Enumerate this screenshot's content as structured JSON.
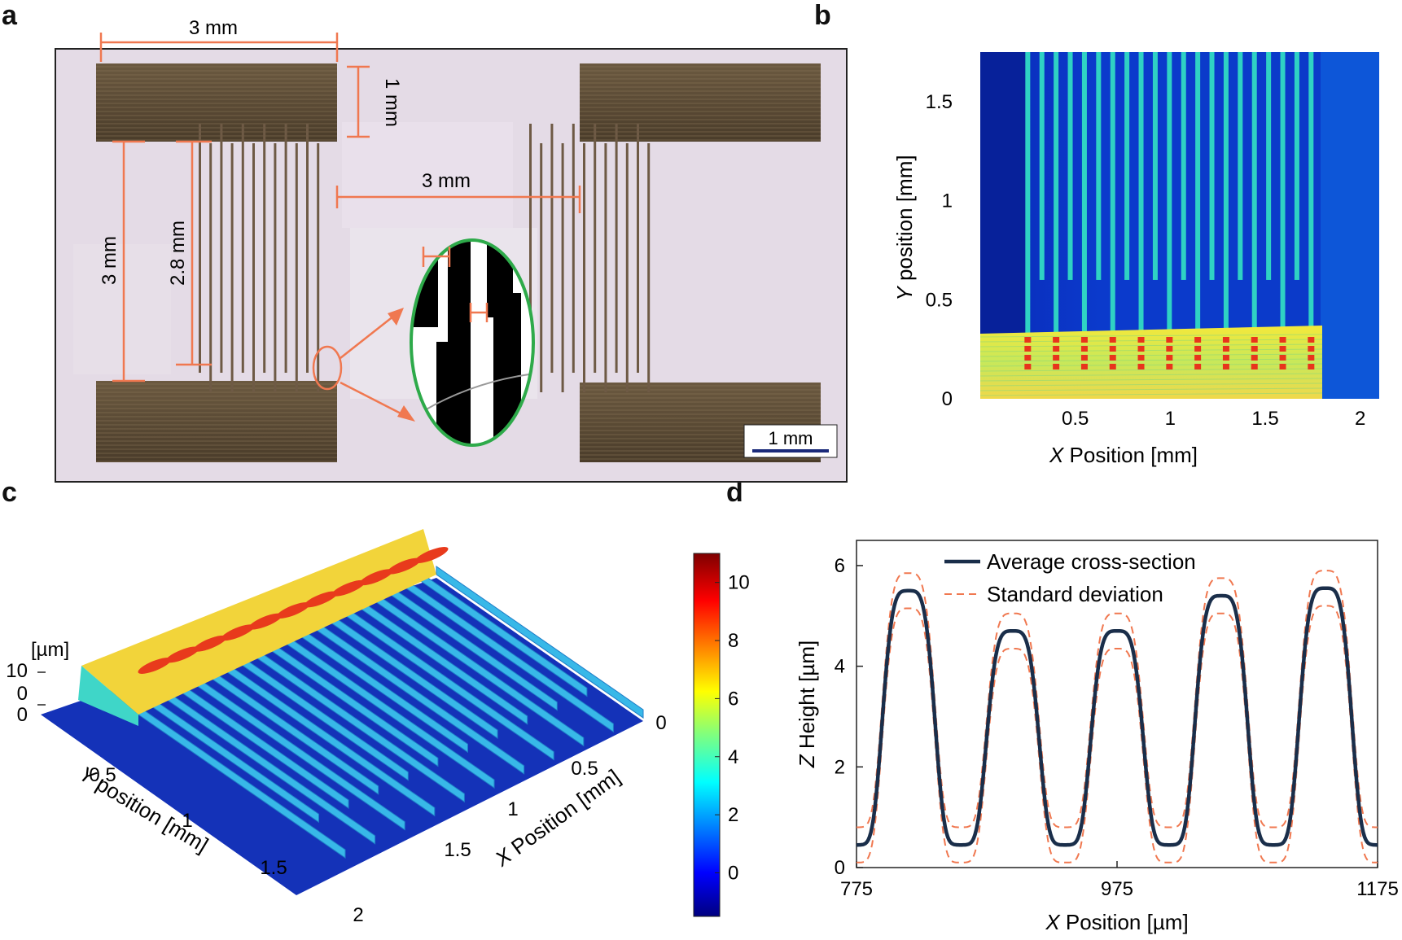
{
  "panels": {
    "a": {
      "letter": "a",
      "dims": {
        "top_width": "3 mm",
        "pad_height": "1 mm",
        "gap": "3 mm",
        "span_outer": "3 mm",
        "span_inner": "2.8 mm"
      },
      "scale_bar": "1 mm",
      "colors": {
        "annotation": "#f07850",
        "inset_border": "#2eaa4a",
        "pad": "#5a4a36",
        "background": "#e4dbe6"
      }
    },
    "b": {
      "letter": "b",
      "xlabel_var": "X",
      "xlabel_rest": " Position [mm]",
      "ylabel_var": "Y",
      "ylabel_rest": " position [mm]",
      "xticks": [
        "0.5",
        "1",
        "1.5",
        "2"
      ],
      "yticks": [
        "0",
        "0.5",
        "1",
        "1.5"
      ]
    },
    "c": {
      "letter": "c",
      "zunit": "[µm]",
      "zticks": [
        "10",
        "0",
        "0"
      ],
      "yticks": [
        "0.5",
        "1",
        "1.5",
        "2"
      ],
      "xticks": [
        "0",
        "0.5",
        "1",
        "1.5"
      ],
      "ylabel_var": "Y",
      "ylabel_rest": " position [mm]",
      "xlabel_var": "X",
      "xlabel_rest": " Position [mm]",
      "colorbar_ticks": [
        "10",
        "8",
        "6",
        "4",
        "2",
        "0"
      ]
    },
    "d": {
      "letter": "d",
      "legend": {
        "avg": "Average cross-section",
        "std": "Standard deviation"
      },
      "xlabel_var": "X",
      "xlabel_rest": " Position [µm]",
      "ylabel_var": "Z",
      "ylabel_rest": " Height [µm]",
      "xticks": [
        "775",
        "975",
        "1175"
      ],
      "yticks": [
        "0",
        "2",
        "4",
        "6"
      ],
      "colors": {
        "avg": "#1a2e4a",
        "std": "#f07850"
      }
    }
  },
  "chart_data": [
    {
      "type": "line",
      "panel": "d",
      "xlim": [
        775,
        1175
      ],
      "ylim": [
        0,
        6.5
      ],
      "peaks": [
        {
          "x": 815,
          "height": 5.5
        },
        {
          "x": 895,
          "height": 4.7
        },
        {
          "x": 975,
          "height": 4.7
        },
        {
          "x": 1055,
          "height": 5.4
        },
        {
          "x": 1135,
          "height": 5.55
        }
      ],
      "baseline": 0.45,
      "std_band": 0.35,
      "series": [
        {
          "name": "Average cross-section"
        },
        {
          "name": "Standard deviation"
        }
      ]
    },
    {
      "type": "heatmap",
      "panel": "b",
      "xlim": [
        0,
        2.1
      ],
      "ylim": [
        0,
        1.75
      ]
    },
    {
      "type": "heatmap",
      "panel": "c",
      "colorbar_range": [
        -1.5,
        11
      ]
    }
  ]
}
